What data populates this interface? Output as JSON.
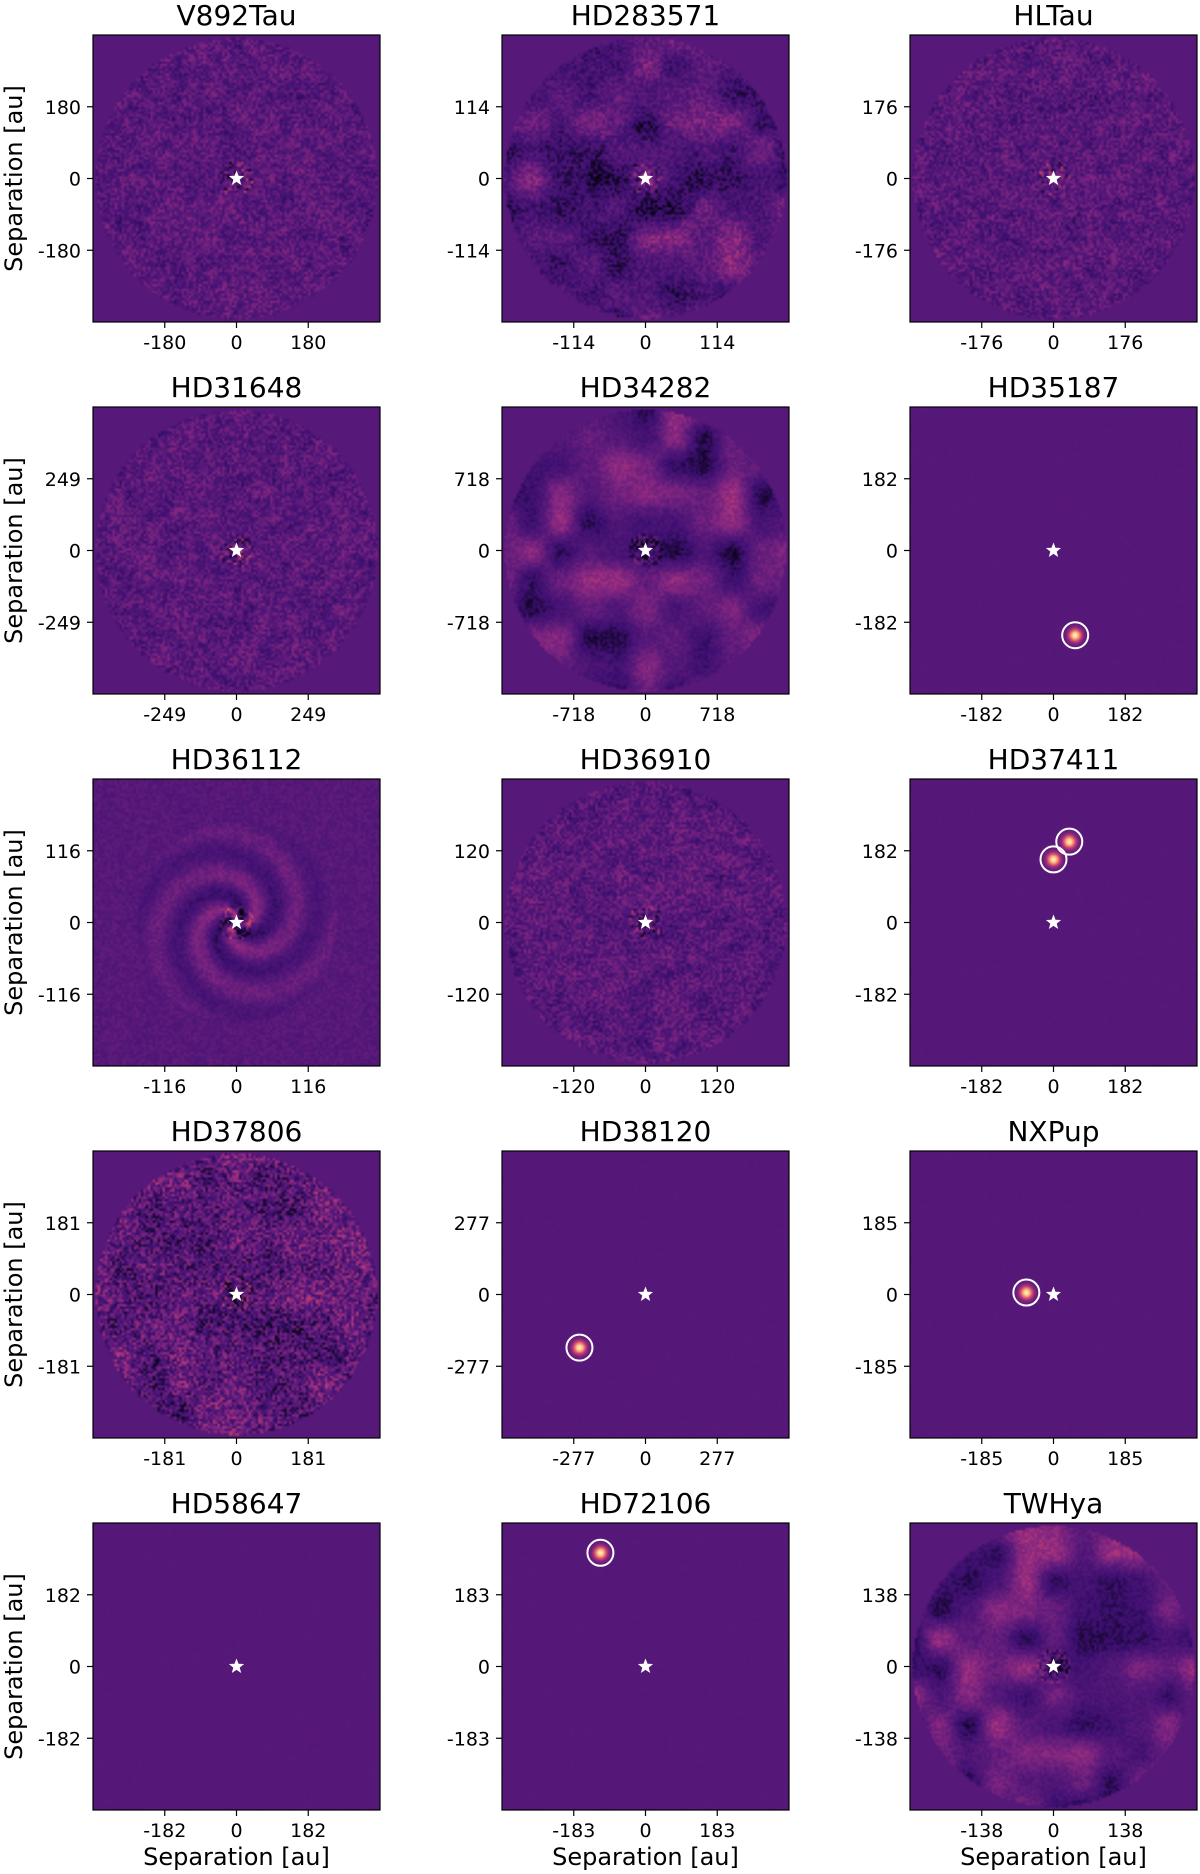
{
  "figure": {
    "panel_axis_label": "Separation [au]",
    "colormap": [
      "#000004",
      "#3b0f70",
      "#5a1a7a",
      "#8c2981",
      "#de4968",
      "#fe9f6d",
      "#fcfdbf"
    ],
    "background_color": "#461a6f",
    "marker_color": "#ffffff"
  },
  "chart_data": [
    {
      "type": "heatmap",
      "title": "V892Tau",
      "ticks": [
        -180,
        0,
        180
      ],
      "ylabel": "Separation [au]",
      "xlabel": "",
      "style": "noise_fine",
      "sources": []
    },
    {
      "type": "heatmap",
      "title": "HD283571",
      "ticks": [
        -114,
        0,
        114
      ],
      "ylabel": "",
      "xlabel": "",
      "style": "noise_patchy",
      "sources": []
    },
    {
      "type": "heatmap",
      "title": "HLTau",
      "ticks": [
        -176,
        0,
        176
      ],
      "ylabel": "",
      "xlabel": "",
      "style": "noise_fine",
      "sources": []
    },
    {
      "type": "heatmap",
      "title": "HD31648",
      "ticks": [
        -249,
        0,
        249
      ],
      "ylabel": "Separation [au]",
      "xlabel": "",
      "style": "noise_fine",
      "sources": []
    },
    {
      "type": "heatmap",
      "title": "HD34282",
      "ticks": [
        -718,
        0,
        718
      ],
      "ylabel": "",
      "xlabel": "",
      "style": "noise_blobs",
      "sources": []
    },
    {
      "type": "heatmap",
      "title": "HD35187",
      "ticks": [
        -182,
        0,
        182
      ],
      "ylabel": "",
      "xlabel": "",
      "style": "smooth",
      "sources": [
        {
          "x": 55,
          "y": -215,
          "circled": true
        }
      ]
    },
    {
      "type": "heatmap",
      "title": "HD36112",
      "ticks": [
        -116,
        0,
        116
      ],
      "ylabel": "Separation [au]",
      "xlabel": "",
      "style": "spiral",
      "sources": []
    },
    {
      "type": "heatmap",
      "title": "HD36910",
      "ticks": [
        -120,
        0,
        120
      ],
      "ylabel": "",
      "xlabel": "",
      "style": "noise_fine",
      "sources": []
    },
    {
      "type": "heatmap",
      "title": "HD37411",
      "ticks": [
        -182,
        0,
        182
      ],
      "ylabel": "",
      "xlabel": "",
      "style": "smooth",
      "sources": [
        {
          "x": 40,
          "y": 205,
          "circled": true
        },
        {
          "x": 0,
          "y": 160,
          "circled": true
        }
      ]
    },
    {
      "type": "heatmap",
      "title": "HD37806",
      "ticks": [
        -181,
        0,
        181
      ],
      "ylabel": "Separation [au]",
      "xlabel": "",
      "style": "noise_pixel",
      "sources": []
    },
    {
      "type": "heatmap",
      "title": "HD38120",
      "ticks": [
        -277,
        0,
        277
      ],
      "ylabel": "",
      "xlabel": "",
      "style": "smooth",
      "sources": [
        {
          "x": -255,
          "y": -205,
          "circled": true
        }
      ]
    },
    {
      "type": "heatmap",
      "title": "NXPup",
      "ticks": [
        -185,
        0,
        185
      ],
      "ylabel": "",
      "xlabel": "",
      "style": "smooth",
      "sources": [
        {
          "x": -70,
          "y": 5,
          "circled": true
        }
      ]
    },
    {
      "type": "heatmap",
      "title": "HD58647",
      "ticks": [
        -182,
        0,
        182
      ],
      "ylabel": "Separation [au]",
      "xlabel": "Separation [au]",
      "style": "smooth",
      "sources": []
    },
    {
      "type": "heatmap",
      "title": "HD72106",
      "ticks": [
        -183,
        0,
        183
      ],
      "ylabel": "",
      "xlabel": "Separation [au]",
      "style": "smooth",
      "sources": [
        {
          "x": -115,
          "y": 290,
          "circled": true
        }
      ]
    },
    {
      "type": "heatmap",
      "title": "TWHya",
      "ticks": [
        -138,
        0,
        138
      ],
      "ylabel": "",
      "xlabel": "Separation [au]",
      "style": "noise_blobs",
      "sources": []
    }
  ]
}
